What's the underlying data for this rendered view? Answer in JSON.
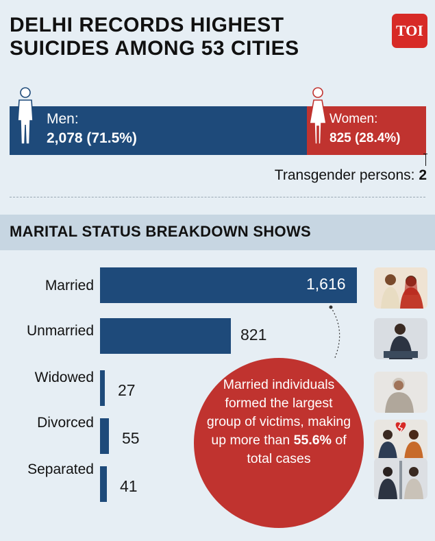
{
  "header": {
    "title_line1": "DELHI RECORDS HIGHEST",
    "title_line2": "SUICIDES AMONG 53 CITIES",
    "logo": "TOI"
  },
  "gender": {
    "men_label": "Men:",
    "men_value": "2,078 (71.5%)",
    "women_label": "Women:",
    "women_value": "825 (28.4%)",
    "transgender_label": "Transgender persons:",
    "transgender_value": "2",
    "icons": [
      "male-figure-icon",
      "female-figure-icon"
    ],
    "colors": {
      "men": "#1e4a7a",
      "women": "#c0332f"
    }
  },
  "section_title": "MARITAL STATUS BREAKDOWN SHOWS",
  "callout": {
    "text": "Married individuals formed the largest group of victims, making up more than",
    "highlight": "55.6%",
    "suffix": "of total cases"
  },
  "chart_data": {
    "type": "bar",
    "categories": [
      "Married",
      "Unmarried",
      "Widowed",
      "Divorced",
      "Separated"
    ],
    "values": [
      1616,
      821,
      27,
      55,
      41
    ],
    "value_labels": [
      "1,616",
      "821",
      "27",
      "55",
      "41"
    ],
    "orientation": "horizontal",
    "bar_color": "#1e4a7a"
  }
}
